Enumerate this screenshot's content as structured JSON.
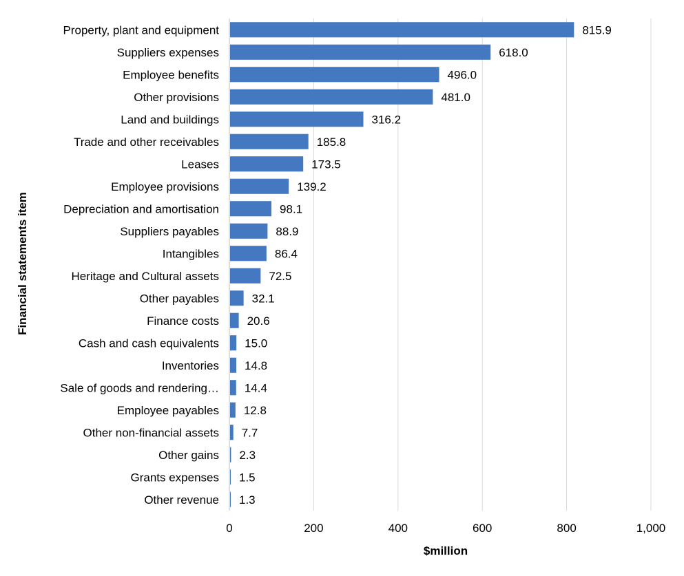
{
  "chart_data": {
    "type": "bar",
    "orientation": "horizontal",
    "categories": [
      "Property, plant and equipment",
      "Suppliers expenses",
      "Employee benefits",
      "Other provisions",
      "Land and buildings",
      "Trade and other receivables",
      "Leases",
      "Employee provisions",
      "Depreciation and amortisation",
      "Suppliers payables",
      "Intangibles",
      "Heritage and Cultural assets",
      "Other payables",
      "Finance costs",
      "Cash and cash equivalents",
      "Inventories",
      "Sale of goods and rendering…",
      "Employee payables",
      "Other non-financial assets",
      "Other gains",
      "Grants expenses",
      "Other revenue"
    ],
    "values": [
      815.9,
      618.0,
      496.0,
      481.0,
      316.2,
      185.8,
      173.5,
      139.2,
      98.1,
      88.9,
      86.4,
      72.5,
      32.1,
      20.6,
      15.0,
      14.8,
      14.4,
      12.8,
      7.7,
      2.3,
      1.5,
      1.3
    ],
    "value_labels": [
      "815.9",
      "618.0",
      "496.0",
      "481.0",
      "316.2",
      "185.8",
      "173.5",
      "139.2",
      "98.1",
      "88.9",
      "86.4",
      "72.5",
      "32.1",
      "20.6",
      "15.0",
      "14.8",
      "14.4",
      "12.8",
      "7.7",
      "2.3",
      "1.5",
      "1.3"
    ],
    "xlabel": "$million",
    "ylabel": "Financial statements item",
    "xlim": [
      0,
      1000
    ],
    "x_ticks": [
      0,
      200,
      400,
      600,
      800,
      1000
    ],
    "x_tick_labels": [
      "0",
      "200",
      "400",
      "600",
      "800",
      "1,000"
    ],
    "grid": "vertical",
    "bar_color": "#4479c2",
    "legend": "none"
  }
}
